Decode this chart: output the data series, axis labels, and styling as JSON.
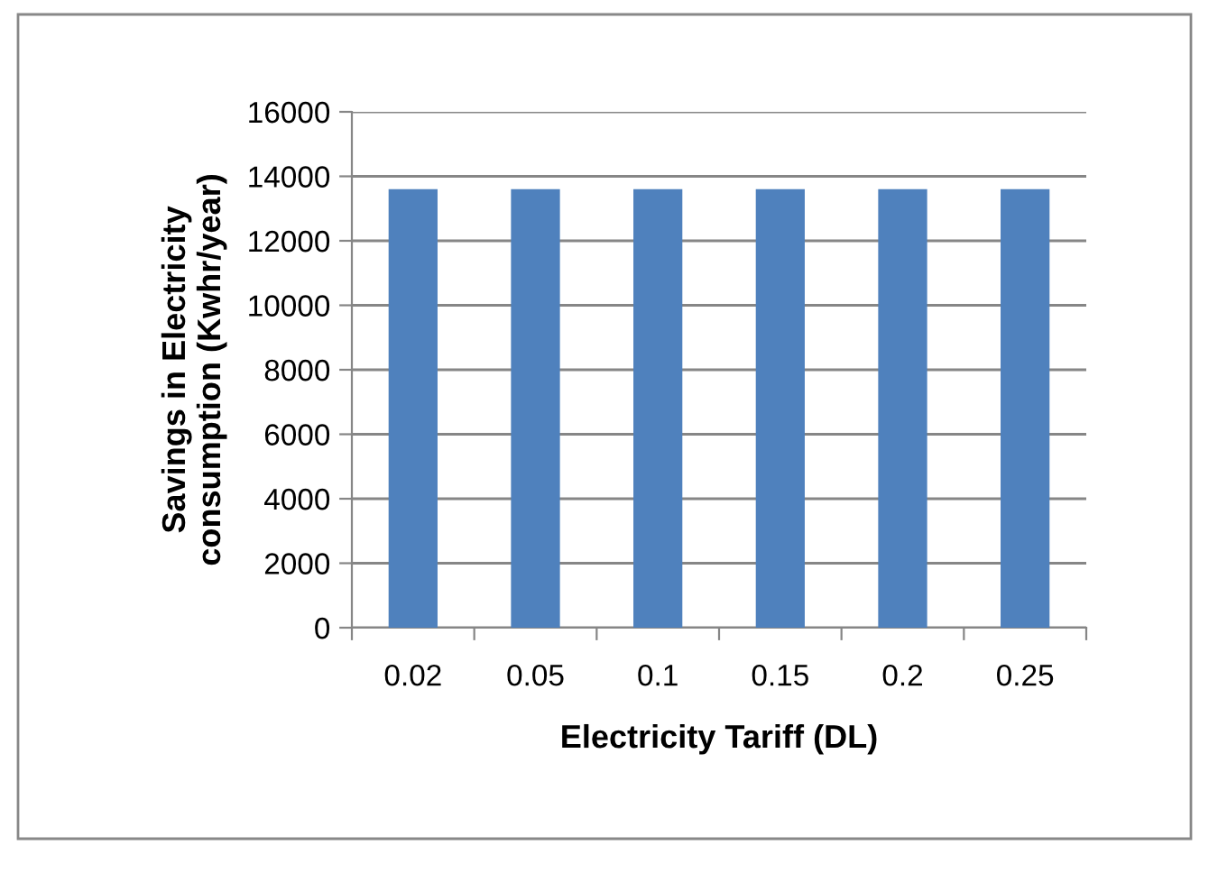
{
  "chart_data": {
    "type": "bar",
    "xlabel": "Electricity Tariff (DL)",
    "ylabel": "Savings in Electricity\nconsumption (Kwhr/year)",
    "categories": [
      "0.02",
      "0.05",
      "0.1",
      "0.15",
      "0.2",
      "0.25"
    ],
    "values": [
      13600,
      13600,
      13600,
      13600,
      13600,
      13600
    ],
    "color": "#4f81bd",
    "ylim": [
      0,
      16000
    ],
    "yticks": [
      0,
      2000,
      4000,
      6000,
      8000,
      10000,
      12000,
      14000,
      16000
    ],
    "grid": "y",
    "legend": false
  }
}
